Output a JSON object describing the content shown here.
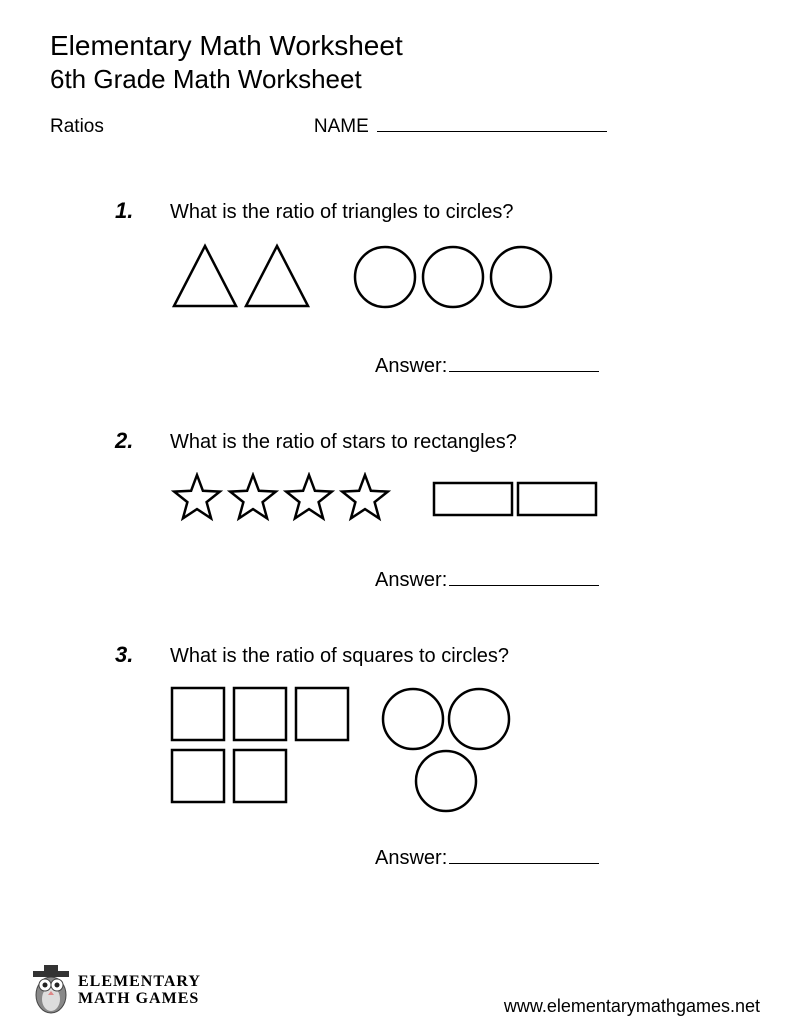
{
  "header": {
    "title1": "Elementary Math Worksheet",
    "title2": "6th Grade Math Worksheet",
    "topic": "Ratios",
    "name_label": "NAME"
  },
  "questions": [
    {
      "number": "1.",
      "text": "What is the ratio of triangles to circles?",
      "answer_label": "Answer:",
      "group1": {
        "shape": "triangle",
        "count": 2
      },
      "group2": {
        "shape": "circle",
        "count": 3
      },
      "layout": "single-row"
    },
    {
      "number": "2.",
      "text": "What is the ratio of stars to rectangles?",
      "answer_label": "Answer:",
      "group1": {
        "shape": "star",
        "count": 4
      },
      "group2": {
        "shape": "rectangle",
        "count": 2
      },
      "layout": "single-row"
    },
    {
      "number": "3.",
      "text": "What is the ratio of squares to circles?",
      "answer_label": "Answer:",
      "group1": {
        "shape": "square",
        "count": 5,
        "arrangement": [
          3,
          2
        ]
      },
      "group2": {
        "shape": "circle",
        "count": 3,
        "arrangement": "pyramid"
      },
      "layout": "multi-row"
    }
  ],
  "footer": {
    "logo_line1": "ELEMENTARY",
    "logo_line2": "MATH GAMES",
    "url": "www.elementarymathgames.net"
  },
  "style": {
    "stroke": "#000000",
    "stroke_width": 2.5,
    "fill": "#ffffff",
    "background": "#ffffff",
    "text_color": "#000000",
    "shape_sizes": {
      "triangle": 70,
      "circle": 66,
      "star": 54,
      "rectangle_w": 82,
      "rectangle_h": 36,
      "square": 56
    }
  }
}
